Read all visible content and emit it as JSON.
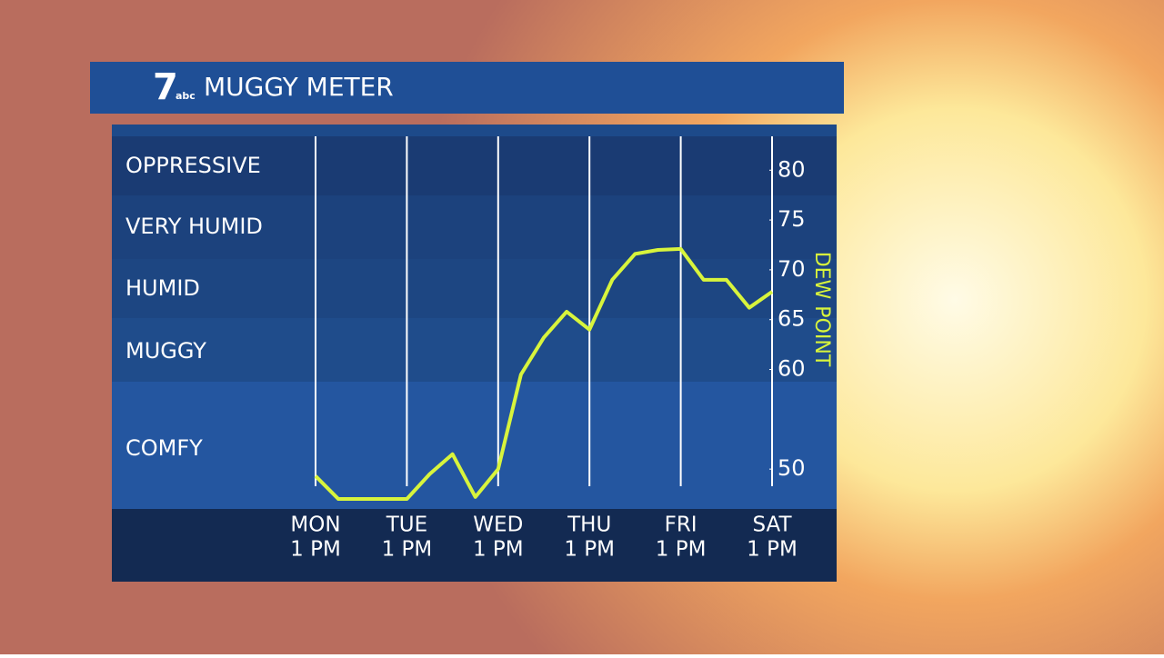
{
  "chart_data": {
    "type": "line",
    "logo": {
      "number": "7",
      "network": "abc"
    },
    "title": "MUGGY METER",
    "y_label": "DEW POINT",
    "band_labels": [
      "OPPRESSIVE",
      "VERY HUMID",
      "HUMID",
      "MUGGY",
      "COMFY"
    ],
    "categories": [
      [
        "MON",
        "1 PM"
      ],
      null,
      null,
      null,
      [
        "TUE",
        "1 PM"
      ],
      null,
      null,
      null,
      [
        "WED",
        "1 PM"
      ],
      null,
      null,
      null,
      [
        "THU",
        "1 PM"
      ],
      null,
      null,
      null,
      [
        "FRI",
        "1 PM"
      ],
      null,
      null,
      null,
      [
        "SAT",
        "1 PM"
      ]
    ],
    "series": [
      {
        "name": "DEW POINT",
        "color": "#d8f43c",
        "values": [
          49.3,
          47,
          47,
          47,
          47,
          49.5,
          51.5,
          47.2,
          50,
          59.5,
          63.2,
          65.8,
          64,
          69,
          71.6,
          72,
          72.1,
          69,
          69,
          66.2,
          67.8
        ]
      }
    ],
    "ylim": [
      46,
      83.4
    ],
    "yticks": [
      50,
      60,
      65,
      70,
      75,
      80
    ]
  }
}
